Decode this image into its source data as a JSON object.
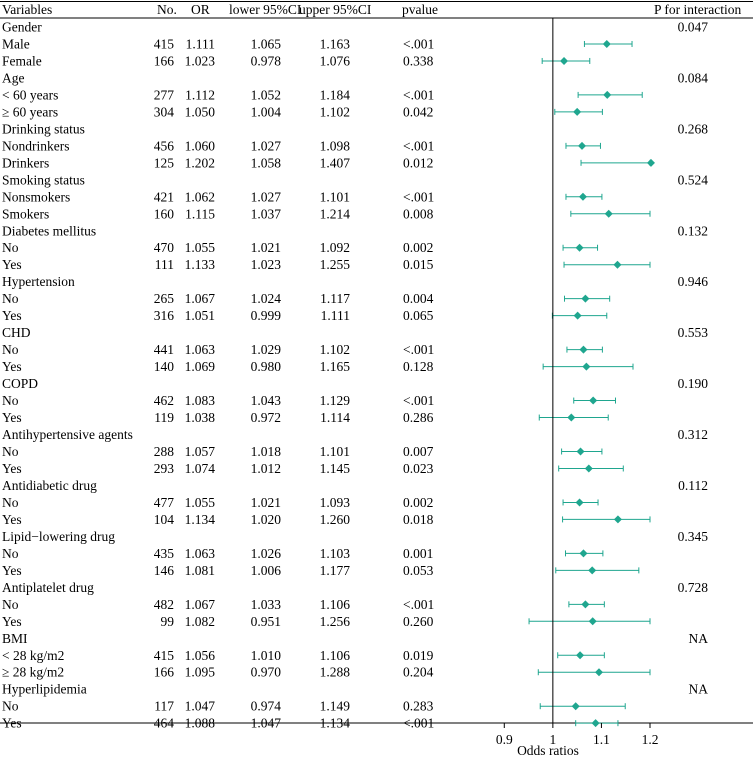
{
  "chart_data": {
    "type": "forest",
    "headers": {
      "variables": "Variables",
      "n": "No.",
      "or": "OR",
      "lower": "lower 95%CI",
      "upper": "upper 95%CI",
      "pvalue": "pvalue",
      "pint": "P for interaction"
    },
    "x_axis": {
      "label": "Odds ratios",
      "ticks": [
        0.9,
        1,
        1.1,
        1.2
      ],
      "tick_labels": [
        "0.9",
        "1",
        "1.1",
        "1.2"
      ],
      "range": [
        0.85,
        1.2
      ],
      "reference_line": 1
    },
    "marker_color": "#1fa68f",
    "rows": [
      {
        "label": "Gender",
        "group": true,
        "pint": "0.047"
      },
      {
        "label": "Male",
        "n": "415",
        "or": "1.111",
        "lower": "1.065",
        "upper": "1.163",
        "pvalue": "<.001",
        "est": 1.111,
        "lo": 1.065,
        "hi": 1.163
      },
      {
        "label": "Female",
        "n": "166",
        "or": "1.023",
        "lower": "0.978",
        "upper": "1.076",
        "pvalue": "0.338",
        "est": 1.023,
        "lo": 0.978,
        "hi": 1.076
      },
      {
        "label": "Age",
        "group": true,
        "pint": "0.084"
      },
      {
        "label": "< 60 years",
        "n": "277",
        "or": "1.112",
        "lower": "1.052",
        "upper": "1.184",
        "pvalue": "<.001",
        "est": 1.112,
        "lo": 1.052,
        "hi": 1.184
      },
      {
        "label": "≥ 60 years",
        "n": "304",
        "or": "1.050",
        "lower": "1.004",
        "upper": "1.102",
        "pvalue": "0.042",
        "est": 1.05,
        "lo": 1.004,
        "hi": 1.102
      },
      {
        "label": "Drinking status",
        "group": true,
        "pint": "0.268"
      },
      {
        "label": "Nondrinkers",
        "n": "456",
        "or": "1.060",
        "lower": "1.027",
        "upper": "1.098",
        "pvalue": "<.001",
        "est": 1.06,
        "lo": 1.027,
        "hi": 1.098
      },
      {
        "label": "Drinkers",
        "n": "125",
        "or": "1.202",
        "lower": "1.058",
        "upper": "1.407",
        "pvalue": "0.012",
        "est": 1.202,
        "lo": 1.058,
        "hi": 1.407
      },
      {
        "label": "Smoking status",
        "group": true,
        "pint": "0.524"
      },
      {
        "label": "Nonsmokers",
        "n": "421",
        "or": "1.062",
        "lower": "1.027",
        "upper": "1.101",
        "pvalue": "<.001",
        "est": 1.062,
        "lo": 1.027,
        "hi": 1.101
      },
      {
        "label": "Smokers",
        "n": "160",
        "or": "1.115",
        "lower": "1.037",
        "upper": "1.214",
        "pvalue": "0.008",
        "est": 1.115,
        "lo": 1.037,
        "hi": 1.214
      },
      {
        "label": "Diabetes mellitus",
        "group": true,
        "pint": "0.132"
      },
      {
        "label": "No",
        "n": "470",
        "or": "1.055",
        "lower": "1.021",
        "upper": "1.092",
        "pvalue": "0.002",
        "est": 1.055,
        "lo": 1.021,
        "hi": 1.092
      },
      {
        "label": "Yes",
        "n": "111",
        "or": "1.133",
        "lower": "1.023",
        "upper": "1.255",
        "pvalue": "0.015",
        "est": 1.133,
        "lo": 1.023,
        "hi": 1.255
      },
      {
        "label": "Hypertension",
        "group": true,
        "pint": "0.946"
      },
      {
        "label": "No",
        "n": "265",
        "or": "1.067",
        "lower": "1.024",
        "upper": "1.117",
        "pvalue": "0.004",
        "est": 1.067,
        "lo": 1.024,
        "hi": 1.117
      },
      {
        "label": "Yes",
        "n": "316",
        "or": "1.051",
        "lower": "0.999",
        "upper": "1.111",
        "pvalue": "0.065",
        "est": 1.051,
        "lo": 0.999,
        "hi": 1.111
      },
      {
        "label": "CHD",
        "group": true,
        "pint": "0.553"
      },
      {
        "label": "No",
        "n": "441",
        "or": "1.063",
        "lower": "1.029",
        "upper": "1.102",
        "pvalue": "<.001",
        "est": 1.063,
        "lo": 1.029,
        "hi": 1.102
      },
      {
        "label": "Yes",
        "n": "140",
        "or": "1.069",
        "lower": "0.980",
        "upper": "1.165",
        "pvalue": "0.128",
        "est": 1.069,
        "lo": 0.98,
        "hi": 1.165
      },
      {
        "label": "COPD",
        "group": true,
        "pint": "0.190"
      },
      {
        "label": "No",
        "n": "462",
        "or": "1.083",
        "lower": "1.043",
        "upper": "1.129",
        "pvalue": "<.001",
        "est": 1.083,
        "lo": 1.043,
        "hi": 1.129
      },
      {
        "label": "Yes",
        "n": "119",
        "or": "1.038",
        "lower": "0.972",
        "upper": "1.114",
        "pvalue": "0.286",
        "est": 1.038,
        "lo": 0.972,
        "hi": 1.114
      },
      {
        "label": "Antihypertensive agents",
        "group": true,
        "pint": "0.312"
      },
      {
        "label": "No",
        "n": "288",
        "or": "1.057",
        "lower": "1.018",
        "upper": "1.101",
        "pvalue": "0.007",
        "est": 1.057,
        "lo": 1.018,
        "hi": 1.101
      },
      {
        "label": "Yes",
        "n": "293",
        "or": "1.074",
        "lower": "1.012",
        "upper": "1.145",
        "pvalue": "0.023",
        "est": 1.074,
        "lo": 1.012,
        "hi": 1.145
      },
      {
        "label": "Antidiabetic drug",
        "group": true,
        "pint": "0.112"
      },
      {
        "label": "No",
        "n": "477",
        "or": "1.055",
        "lower": "1.021",
        "upper": "1.093",
        "pvalue": "0.002",
        "est": 1.055,
        "lo": 1.021,
        "hi": 1.093
      },
      {
        "label": "Yes",
        "n": "104",
        "or": "1.134",
        "lower": "1.020",
        "upper": "1.260",
        "pvalue": "0.018",
        "est": 1.134,
        "lo": 1.02,
        "hi": 1.26
      },
      {
        "label": "Lipid−lowering drug",
        "group": true,
        "pint": "0.345"
      },
      {
        "label": "No",
        "n": "435",
        "or": "1.063",
        "lower": "1.026",
        "upper": "1.103",
        "pvalue": "0.001",
        "est": 1.063,
        "lo": 1.026,
        "hi": 1.103
      },
      {
        "label": "Yes",
        "n": "146",
        "or": "1.081",
        "lower": "1.006",
        "upper": "1.177",
        "pvalue": "0.053",
        "est": 1.081,
        "lo": 1.006,
        "hi": 1.177
      },
      {
        "label": "Antiplatelet drug",
        "group": true,
        "pint": "0.728"
      },
      {
        "label": "No",
        "n": "482",
        "or": "1.067",
        "lower": "1.033",
        "upper": "1.106",
        "pvalue": "<.001",
        "est": 1.067,
        "lo": 1.033,
        "hi": 1.106
      },
      {
        "label": "Yes",
        "n": "99",
        "or": "1.082",
        "lower": "0.951",
        "upper": "1.256",
        "pvalue": "0.260",
        "est": 1.082,
        "lo": 0.951,
        "hi": 1.256
      },
      {
        "label": "BMI",
        "group": true,
        "pint": "NA"
      },
      {
        "label": "< 28 kg/m2",
        "n": "415",
        "or": "1.056",
        "lower": "1.010",
        "upper": "1.106",
        "pvalue": "0.019",
        "est": 1.056,
        "lo": 1.01,
        "hi": 1.106
      },
      {
        "label": "≥ 28 kg/m2",
        "n": "166",
        "or": "1.095",
        "lower": "0.970",
        "upper": "1.288",
        "pvalue": "0.204",
        "est": 1.095,
        "lo": 0.97,
        "hi": 1.288
      },
      {
        "label": "Hyperlipidemia",
        "group": true,
        "pint": "NA"
      },
      {
        "label": "No",
        "n": "117",
        "or": "1.047",
        "lower": "0.974",
        "upper": "1.149",
        "pvalue": "0.283",
        "est": 1.047,
        "lo": 0.974,
        "hi": 1.149
      },
      {
        "label": "Yes",
        "n": "464",
        "or": "1.088",
        "lower": "1.047",
        "upper": "1.134",
        "pvalue": "<.001",
        "est": 1.088,
        "lo": 1.047,
        "hi": 1.134
      }
    ]
  }
}
